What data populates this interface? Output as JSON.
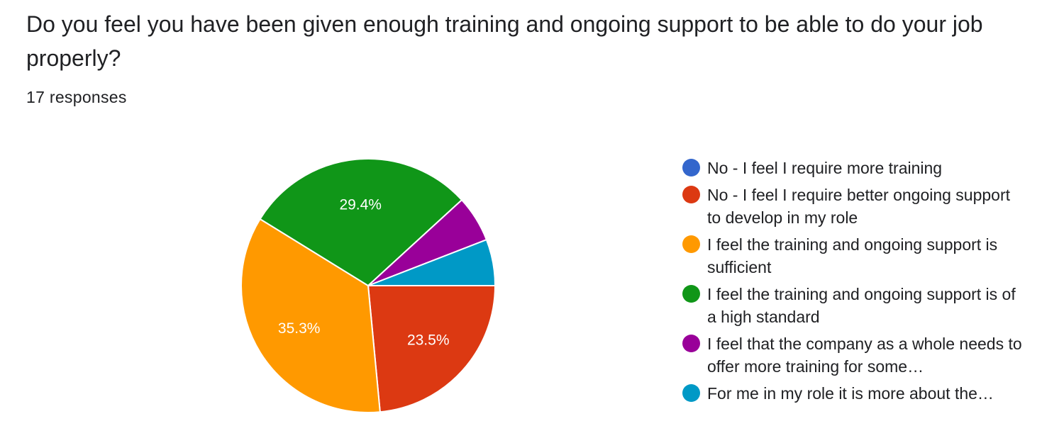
{
  "question": {
    "title": "Do you feel you have been given enough training and ongoing support to be able to do your job properly?",
    "responses": "17 responses"
  },
  "chart_data": {
    "type": "pie",
    "total": 17,
    "slices": [
      {
        "name": "No - I feel I require more training",
        "value": 0,
        "label": "",
        "color": "#3366cc"
      },
      {
        "name": "No - I feel I require better ongoing support to develop in my role",
        "value": 23.5,
        "label": "23.5%",
        "color": "#dc3912"
      },
      {
        "name": "I feel the training and ongoing support is sufficient",
        "value": 35.3,
        "label": "35.3%",
        "color": "#ff9900"
      },
      {
        "name": "I feel the training and ongoing support is of a high standard",
        "value": 29.4,
        "label": "29.4%",
        "color": "#109618"
      },
      {
        "name": "I feel that the company as a whole needs to offer more training for some…",
        "value": 5.9,
        "label": "",
        "color": "#990099"
      },
      {
        "name": "For me in my role it is more about the…",
        "value": 5.9,
        "label": "",
        "color": "#0099c6"
      }
    ],
    "legend_position": "right"
  }
}
